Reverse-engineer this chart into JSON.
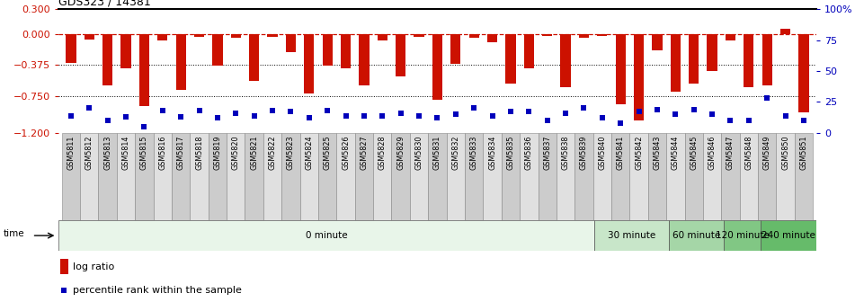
{
  "title": "GDS323 / 14381",
  "samples": [
    "GSM5811",
    "GSM5812",
    "GSM5813",
    "GSM5814",
    "GSM5815",
    "GSM5816",
    "GSM5817",
    "GSM5818",
    "GSM5819",
    "GSM5820",
    "GSM5821",
    "GSM5822",
    "GSM5823",
    "GSM5824",
    "GSM5825",
    "GSM5826",
    "GSM5827",
    "GSM5828",
    "GSM5829",
    "GSM5830",
    "GSM5831",
    "GSM5832",
    "GSM5833",
    "GSM5834",
    "GSM5835",
    "GSM5836",
    "GSM5837",
    "GSM5838",
    "GSM5839",
    "GSM5840",
    "GSM5841",
    "GSM5842",
    "GSM5843",
    "GSM5844",
    "GSM5845",
    "GSM5846",
    "GSM5847",
    "GSM5848",
    "GSM5849",
    "GSM5850",
    "GSM5851"
  ],
  "log_ratio": [
    -0.35,
    -0.07,
    -0.63,
    -0.42,
    -0.87,
    -0.08,
    -0.68,
    -0.04,
    -0.38,
    -0.05,
    -0.57,
    -0.04,
    -0.22,
    -0.72,
    -0.38,
    -0.42,
    -0.62,
    -0.08,
    -0.52,
    -0.04,
    -0.8,
    -0.36,
    -0.05,
    -0.1,
    -0.6,
    -0.42,
    -0.03,
    -0.65,
    -0.05,
    -0.03,
    -0.85,
    -1.05,
    -0.2,
    -0.7,
    -0.6,
    -0.45,
    -0.08,
    -0.65,
    -0.63,
    0.06,
    -0.95
  ],
  "percentile_rank": [
    14,
    20,
    10,
    13,
    5,
    18,
    13,
    18,
    12,
    16,
    14,
    18,
    17,
    12,
    18,
    14,
    14,
    14,
    16,
    14,
    12,
    15,
    20,
    14,
    17,
    17,
    10,
    16,
    20,
    12,
    8,
    17,
    19,
    15,
    19,
    15,
    10,
    10,
    28,
    14,
    10
  ],
  "ylim_left": [
    -1.2,
    0.3
  ],
  "ylim_right": [
    0,
    100
  ],
  "yticks_left": [
    0.3,
    0.0,
    -0.375,
    -0.75,
    -1.2
  ],
  "yticks_right": [
    100,
    75,
    50,
    25,
    0
  ],
  "bar_color": "#cc1100",
  "dot_color": "#0000bb",
  "time_groups": [
    {
      "label": "0 minute",
      "start": 0,
      "end": 29,
      "color": "#e8f5e9"
    },
    {
      "label": "30 minute",
      "start": 29,
      "end": 33,
      "color": "#c8e6c9"
    },
    {
      "label": "60 minute",
      "start": 33,
      "end": 36,
      "color": "#a5d6a7"
    },
    {
      "label": "120 minute",
      "start": 36,
      "end": 38,
      "color": "#81c784"
    },
    {
      "label": "240 minute",
      "start": 38,
      "end": 41,
      "color": "#66bb6a"
    }
  ],
  "legend_bar_label": "log ratio",
  "legend_dot_label": "percentile rank within the sample",
  "tick_bg_even": "#cccccc",
  "tick_bg_odd": "#e0e0e0"
}
